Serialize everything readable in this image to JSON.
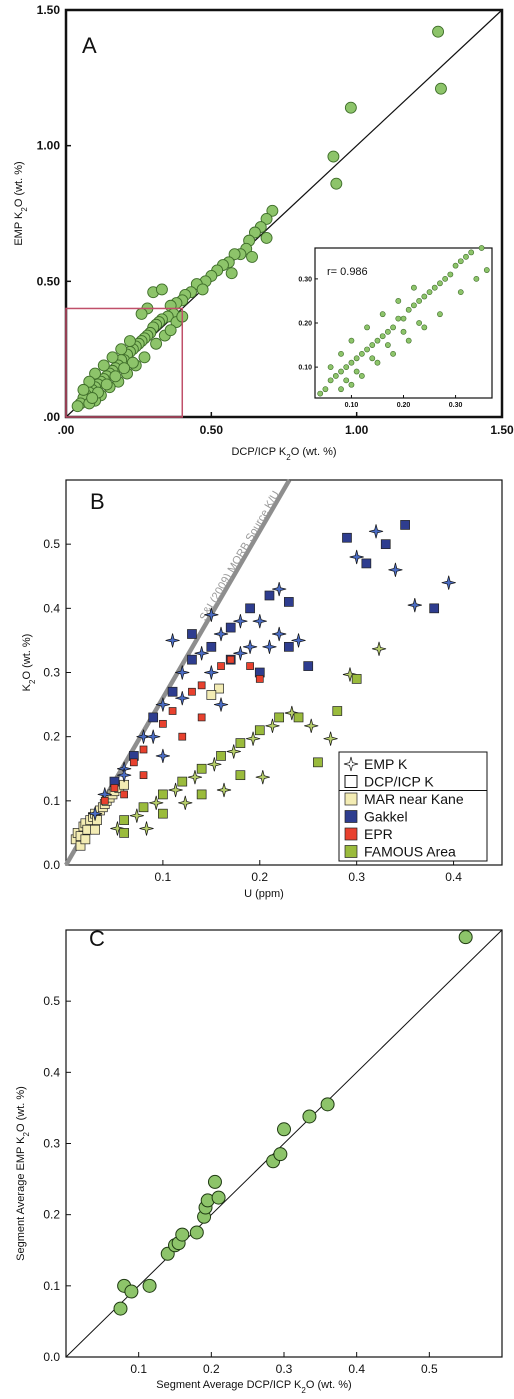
{
  "chart_data": [
    {
      "panel": "A",
      "type": "scatter",
      "xlabel": "DCP/ICP K₂O (wt. %)",
      "ylabel": "EMP K₂O (wt. %)",
      "xlim": [
        0,
        1.5
      ],
      "ylim": [
        0,
        1.5
      ],
      "x_ticks": [
        ".00",
        "0.50",
        "1.00",
        "1.50"
      ],
      "y_ticks": [
        ".00",
        "0.50",
        "1.00",
        "1.50"
      ],
      "reference_line": "1:1",
      "highlight_box": {
        "x": [
          0,
          0.4
        ],
        "y": [
          0,
          0.4
        ],
        "color": "#c0506a"
      },
      "marker_color": "#8dc46a",
      "series": [
        {
          "values": [
            [
              1.28,
              1.42
            ],
            [
              1.29,
              1.21
            ],
            [
              0.98,
              1.14
            ],
            [
              0.92,
              0.96
            ],
            [
              0.93,
              0.86
            ],
            [
              0.71,
              0.76
            ],
            [
              0.69,
              0.73
            ],
            [
              0.67,
              0.7
            ],
            [
              0.65,
              0.68
            ],
            [
              0.69,
              0.66
            ],
            [
              0.63,
              0.65
            ],
            [
              0.62,
              0.62
            ],
            [
              0.6,
              0.6
            ],
            [
              0.58,
              0.6
            ],
            [
              0.64,
              0.59
            ],
            [
              0.56,
              0.57
            ],
            [
              0.54,
              0.56
            ],
            [
              0.52,
              0.54
            ],
            [
              0.57,
              0.53
            ],
            [
              0.5,
              0.52
            ],
            [
              0.48,
              0.5
            ],
            [
              0.45,
              0.49
            ],
            [
              0.47,
              0.47
            ],
            [
              0.43,
              0.46
            ],
            [
              0.41,
              0.45
            ],
            [
              0.4,
              0.43
            ],
            [
              0.38,
              0.42
            ],
            [
              0.36,
              0.41
            ],
            [
              0.37,
              0.38
            ],
            [
              0.35,
              0.37
            ],
            [
              0.33,
              0.36
            ],
            [
              0.32,
              0.35
            ],
            [
              0.31,
              0.34
            ],
            [
              0.3,
              0.33
            ],
            [
              0.29,
              0.31
            ],
            [
              0.28,
              0.3
            ],
            [
              0.27,
              0.29
            ],
            [
              0.26,
              0.28
            ],
            [
              0.25,
              0.27
            ],
            [
              0.24,
              0.26
            ],
            [
              0.23,
              0.25
            ],
            [
              0.22,
              0.24
            ],
            [
              0.21,
              0.23
            ],
            [
              0.2,
              0.21
            ],
            [
              0.19,
              0.21
            ],
            [
              0.18,
              0.19
            ],
            [
              0.17,
              0.18
            ],
            [
              0.16,
              0.17
            ],
            [
              0.15,
              0.16
            ],
            [
              0.14,
              0.15
            ],
            [
              0.13,
              0.14
            ],
            [
              0.12,
              0.13
            ],
            [
              0.11,
              0.12
            ],
            [
              0.1,
              0.11
            ],
            [
              0.09,
              0.1
            ],
            [
              0.08,
              0.09
            ],
            [
              0.07,
              0.08
            ],
            [
              0.06,
              0.07
            ],
            [
              0.05,
              0.05
            ],
            [
              0.04,
              0.04
            ],
            [
              0.3,
              0.46
            ],
            [
              0.33,
              0.47
            ],
            [
              0.28,
              0.4
            ],
            [
              0.26,
              0.38
            ],
            [
              0.34,
              0.3
            ],
            [
              0.31,
              0.27
            ],
            [
              0.27,
              0.22
            ],
            [
              0.24,
              0.19
            ],
            [
              0.21,
              0.16
            ],
            [
              0.18,
              0.13
            ],
            [
              0.15,
              0.11
            ],
            [
              0.12,
              0.08
            ],
            [
              0.1,
              0.06
            ],
            [
              0.08,
              0.05
            ],
            [
              0.22,
              0.28
            ],
            [
              0.19,
              0.25
            ],
            [
              0.16,
              0.22
            ],
            [
              0.13,
              0.19
            ],
            [
              0.1,
              0.16
            ],
            [
              0.08,
              0.13
            ],
            [
              0.06,
              0.1
            ],
            [
              0.23,
              0.2
            ],
            [
              0.2,
              0.18
            ],
            [
              0.17,
              0.15
            ],
            [
              0.14,
              0.12
            ],
            [
              0.11,
              0.09
            ],
            [
              0.09,
              0.07
            ],
            [
              0.38,
              0.35
            ],
            [
              0.36,
              0.32
            ],
            [
              0.4,
              0.37
            ]
          ]
        }
      ],
      "inset": {
        "annotation": "r= 0.986",
        "x_ticks": [
          "0.10",
          "0.20",
          "0.30"
        ],
        "y_ticks": [
          "0.10",
          "0.20",
          "0.30"
        ],
        "xlim": [
          0.03,
          0.37
        ],
        "ylim": [
          0.03,
          0.37
        ]
      }
    },
    {
      "panel": "B",
      "type": "scatter",
      "xlabel": "U (ppm)",
      "ylabel": "K₂O (wt. %)",
      "xlim": [
        0,
        0.45
      ],
      "ylim": [
        0,
        0.6
      ],
      "x_ticks": [
        "0.1",
        "0.2",
        "0.3",
        "0.4"
      ],
      "y_ticks": [
        "0.0",
        "0.1",
        "0.2",
        "0.3",
        "0.4",
        "0.5"
      ],
      "reference_line_label": "S&L(2009) MORB Source K/U",
      "legend_position": "bottom-right",
      "legend": [
        {
          "label": "EMP K",
          "symbol": "star"
        },
        {
          "label": "DCP/ICP K",
          "symbol": "open-square"
        },
        {
          "label": "MAR near Kane",
          "color": "#f3ecb4"
        },
        {
          "label": "Gakkel",
          "color": "#2e3d8f"
        },
        {
          "label": "EPR",
          "color": "#e8412e"
        },
        {
          "label": "FAMOUS Area",
          "color": "#9abb3c"
        }
      ],
      "series": [
        {
          "name": "MAR near Kane",
          "color": "#f3ecb4",
          "values": [
            [
              0.01,
              0.04
            ],
            [
              0.012,
              0.05
            ],
            [
              0.015,
              0.045
            ],
            [
              0.018,
              0.06
            ],
            [
              0.02,
              0.065
            ],
            [
              0.022,
              0.055
            ],
            [
              0.025,
              0.07
            ],
            [
              0.028,
              0.075
            ],
            [
              0.03,
              0.08
            ],
            [
              0.032,
              0.07
            ],
            [
              0.035,
              0.085
            ],
            [
              0.038,
              0.09
            ],
            [
              0.04,
              0.095
            ],
            [
              0.042,
              0.1
            ],
            [
              0.045,
              0.105
            ],
            [
              0.048,
              0.11
            ],
            [
              0.05,
              0.115
            ],
            [
              0.055,
              0.12
            ],
            [
              0.06,
              0.125
            ],
            [
              0.015,
              0.03
            ],
            [
              0.02,
              0.04
            ],
            [
              0.03,
              0.055
            ],
            [
              0.158,
              0.275
            ],
            [
              0.15,
              0.265
            ]
          ]
        },
        {
          "name": "Gakkel",
          "color": "#2e3d8f",
          "values": [
            [
              0.04,
              0.11
            ],
            [
              0.05,
              0.13
            ],
            [
              0.06,
              0.15
            ],
            [
              0.07,
              0.17
            ],
            [
              0.08,
              0.2
            ],
            [
              0.09,
              0.23
            ],
            [
              0.1,
              0.25
            ],
            [
              0.11,
              0.27
            ],
            [
              0.12,
              0.3
            ],
            [
              0.13,
              0.32
            ],
            [
              0.14,
              0.33
            ],
            [
              0.15,
              0.34
            ],
            [
              0.16,
              0.36
            ],
            [
              0.17,
              0.37
            ],
            [
              0.18,
              0.38
            ],
            [
              0.19,
              0.4
            ],
            [
              0.2,
              0.38
            ],
            [
              0.21,
              0.42
            ],
            [
              0.22,
              0.43
            ],
            [
              0.23,
              0.34
            ],
            [
              0.24,
              0.35
            ],
            [
              0.25,
              0.31
            ],
            [
              0.3,
              0.48
            ],
            [
              0.31,
              0.47
            ],
            [
              0.32,
              0.52
            ],
            [
              0.33,
              0.5
            ],
            [
              0.34,
              0.46
            ],
            [
              0.35,
              0.53
            ],
            [
              0.36,
              0.405
            ],
            [
              0.38,
              0.4
            ],
            [
              0.395,
              0.44
            ],
            [
              0.29,
              0.51
            ],
            [
              0.11,
              0.35
            ],
            [
              0.13,
              0.36
            ],
            [
              0.15,
              0.39
            ],
            [
              0.17,
              0.32
            ],
            [
              0.19,
              0.34
            ],
            [
              0.2,
              0.3
            ],
            [
              0.22,
              0.36
            ],
            [
              0.23,
              0.41
            ]
          ]
        },
        {
          "name": "EPR",
          "color": "#e8412e",
          "values": [
            [
              0.03,
              0.08
            ],
            [
              0.04,
              0.1
            ],
            [
              0.05,
              0.12
            ],
            [
              0.06,
              0.14
            ],
            [
              0.07,
              0.16
            ],
            [
              0.08,
              0.18
            ],
            [
              0.09,
              0.2
            ],
            [
              0.1,
              0.22
            ],
            [
              0.11,
              0.24
            ],
            [
              0.12,
              0.26
            ],
            [
              0.13,
              0.27
            ],
            [
              0.14,
              0.28
            ],
            [
              0.15,
              0.3
            ],
            [
              0.16,
              0.31
            ],
            [
              0.17,
              0.32
            ],
            [
              0.18,
              0.33
            ],
            [
              0.19,
              0.31
            ],
            [
              0.2,
              0.29
            ],
            [
              0.21,
              0.34
            ],
            [
              0.06,
              0.11
            ],
            [
              0.08,
              0.14
            ],
            [
              0.1,
              0.17
            ],
            [
              0.12,
              0.2
            ],
            [
              0.14,
              0.23
            ],
            [
              0.16,
              0.25
            ]
          ]
        },
        {
          "name": "FAMOUS Area",
          "color": "#9abb3c",
          "values": [
            [
              0.05,
              0.06
            ],
            [
              0.06,
              0.07
            ],
            [
              0.07,
              0.08
            ],
            [
              0.08,
              0.09
            ],
            [
              0.09,
              0.1
            ],
            [
              0.1,
              0.11
            ],
            [
              0.11,
              0.12
            ],
            [
              0.12,
              0.13
            ],
            [
              0.13,
              0.14
            ],
            [
              0.14,
              0.15
            ],
            [
              0.15,
              0.16
            ],
            [
              0.16,
              0.17
            ],
            [
              0.17,
              0.18
            ],
            [
              0.18,
              0.19
            ],
            [
              0.19,
              0.2
            ],
            [
              0.2,
              0.21
            ],
            [
              0.21,
              0.22
            ],
            [
              0.22,
              0.23
            ],
            [
              0.23,
              0.24
            ],
            [
              0.24,
              0.23
            ],
            [
              0.25,
              0.22
            ],
            [
              0.26,
              0.16
            ],
            [
              0.27,
              0.2
            ],
            [
              0.28,
              0.24
            ],
            [
              0.29,
              0.3
            ],
            [
              0.3,
              0.29
            ],
            [
              0.32,
              0.34
            ],
            [
              0.06,
              0.05
            ],
            [
              0.08,
              0.06
            ],
            [
              0.1,
              0.08
            ],
            [
              0.12,
              0.1
            ],
            [
              0.14,
              0.11
            ],
            [
              0.16,
              0.12
            ],
            [
              0.18,
              0.14
            ],
            [
              0.2,
              0.14
            ]
          ]
        }
      ]
    },
    {
      "panel": "C",
      "type": "scatter",
      "xlabel": "Segment Average DCP/ICP K₂O (wt. %)",
      "ylabel": "Segment Average EMP K₂O (wt. %)",
      "xlim": [
        0,
        0.6
      ],
      "ylim": [
        0,
        0.6
      ],
      "x_ticks": [
        "0.1",
        "0.2",
        "0.3",
        "0.4",
        "0.5"
      ],
      "y_ticks": [
        "0.0",
        "0.1",
        "0.2",
        "0.3",
        "0.4",
        "0.5"
      ],
      "reference_line": "1:1",
      "marker_color": "#8dc46a",
      "series": [
        {
          "values": [
            [
              0.075,
              0.068
            ],
            [
              0.08,
              0.1
            ],
            [
              0.09,
              0.092
            ],
            [
              0.115,
              0.1
            ],
            [
              0.14,
              0.145
            ],
            [
              0.15,
              0.157
            ],
            [
              0.155,
              0.16
            ],
            [
              0.16,
              0.172
            ],
            [
              0.18,
              0.175
            ],
            [
              0.19,
              0.197
            ],
            [
              0.192,
              0.21
            ],
            [
              0.195,
              0.22
            ],
            [
              0.205,
              0.246
            ],
            [
              0.21,
              0.224
            ],
            [
              0.285,
              0.275
            ],
            [
              0.295,
              0.285
            ],
            [
              0.3,
              0.32
            ],
            [
              0.335,
              0.338
            ],
            [
              0.36,
              0.355
            ],
            [
              0.55,
              0.59
            ]
          ]
        }
      ]
    }
  ]
}
